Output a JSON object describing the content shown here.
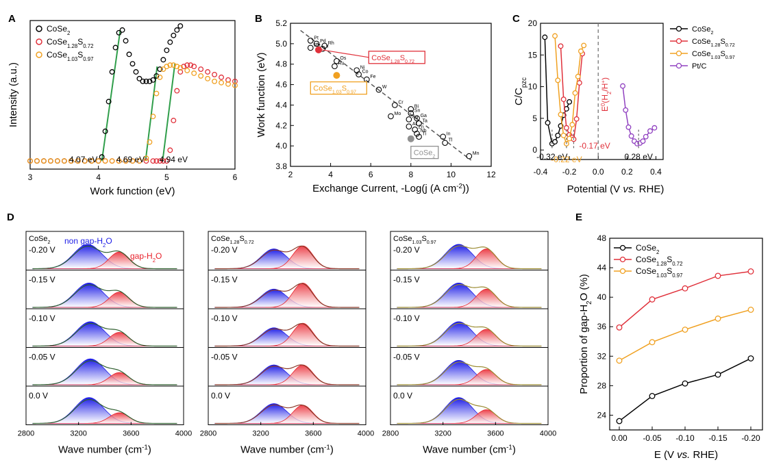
{
  "panel_labels": {
    "A": "A",
    "B": "B",
    "C": "C",
    "D": "D",
    "E": "E"
  },
  "colors": {
    "black": "#000000",
    "red": "#e0303a",
    "orange": "#f0a020",
    "purple": "#9040c0",
    "green": "#2f9e4a",
    "blue": "#1a1ae6",
    "gapred": "#e8202a",
    "grey": "#909090"
  },
  "chart_data": [
    {
      "id": "A",
      "type": "scatter",
      "xlabel": "Work function (eV)",
      "ylabel": "Intensity (a.u.)",
      "xlim": [
        3,
        6
      ],
      "ylim": [
        0,
        1
      ],
      "xticks": [
        "3",
        "4",
        "5",
        "6"
      ],
      "legend_position": "top-left",
      "series": [
        {
          "name": "CoSe2",
          "label_main": "CoSe",
          "label_sub": "2",
          "color": "#000000",
          "x": [
            3.0,
            3.1,
            3.2,
            3.3,
            3.4,
            3.5,
            3.6,
            3.7,
            3.8,
            3.9,
            4.0,
            4.05,
            4.1,
            4.15,
            4.2,
            4.25,
            4.3,
            4.35,
            4.4,
            4.45,
            4.5,
            4.55,
            4.6,
            4.65,
            4.7,
            4.75,
            4.8,
            4.85,
            4.9,
            4.95,
            5.0,
            5.05,
            5.1,
            5.15,
            5.2
          ],
          "y": [
            0,
            0,
            0,
            0,
            0,
            0,
            0,
            0,
            0,
            0,
            0,
            0.03,
            0.22,
            0.44,
            0.66,
            0.84,
            0.95,
            0.97,
            0.89,
            0.79,
            0.72,
            0.66,
            0.61,
            0.59,
            0.59,
            0.59,
            0.6,
            0.63,
            0.68,
            0.75,
            0.82,
            0.88,
            0.93,
            0.97,
            1.0
          ]
        },
        {
          "name": "CoSe1.28S0.72",
          "label_main": "CoSe",
          "label_sub1": "1.28",
          "label_mid": "S",
          "label_sub2": "0.72",
          "color": "#e0303a",
          "x": [
            3.0,
            3.1,
            3.2,
            3.3,
            3.4,
            3.5,
            3.6,
            3.7,
            3.8,
            3.9,
            4.0,
            4.1,
            4.2,
            4.3,
            4.4,
            4.5,
            4.6,
            4.7,
            4.8,
            4.85,
            4.9,
            4.95,
            5.0,
            5.05,
            5.1,
            5.15,
            5.2,
            5.25,
            5.3,
            5.35,
            5.4,
            5.5,
            5.6,
            5.7,
            5.8,
            5.9,
            6.0
          ],
          "y": [
            0,
            0,
            0,
            0,
            0,
            0,
            0,
            0,
            0,
            0,
            0,
            0,
            0,
            0,
            0,
            0,
            0,
            0,
            0,
            0,
            0,
            0,
            0.0,
            0.08,
            0.3,
            0.52,
            0.66,
            0.7,
            0.71,
            0.71,
            0.7,
            0.68,
            0.66,
            0.64,
            0.62,
            0.6,
            0.59
          ]
        },
        {
          "name": "CoSe1.03S0.97",
          "label_main": "CoSe",
          "label_sub1": "1.03",
          "label_mid": "S",
          "label_sub2": "0.97",
          "color": "#f0a020",
          "x": [
            3.0,
            3.1,
            3.2,
            3.3,
            3.4,
            3.5,
            3.6,
            3.7,
            3.8,
            3.9,
            4.0,
            4.1,
            4.2,
            4.3,
            4.4,
            4.5,
            4.6,
            4.7,
            4.75,
            4.8,
            4.85,
            4.9,
            4.95,
            5.0,
            5.05,
            5.1,
            5.15,
            5.2,
            5.3,
            5.4,
            5.5,
            5.6,
            5.7,
            5.8,
            5.9,
            6.0
          ],
          "y": [
            0,
            0,
            0,
            0,
            0,
            0,
            0,
            0,
            0,
            0,
            0,
            0,
            0,
            0,
            0,
            0,
            0,
            0.02,
            0.14,
            0.33,
            0.5,
            0.62,
            0.68,
            0.7,
            0.71,
            0.71,
            0.7,
            0.69,
            0.67,
            0.65,
            0.63,
            0.61,
            0.59,
            0.58,
            0.57,
            0.56
          ]
        }
      ],
      "fits": [
        {
          "x": [
            4.05,
            4.32
          ],
          "y": [
            0.0,
            0.97
          ]
        },
        {
          "x": [
            4.69,
            4.86
          ],
          "y": [
            0.0,
            0.7
          ]
        },
        {
          "x": [
            4.94,
            5.12
          ],
          "y": [
            0.0,
            0.72
          ]
        }
      ],
      "annotations": [
        {
          "text": "4.07 eV",
          "x": 3.78,
          "y": 0.06
        },
        {
          "text": "4.69 eV",
          "x": 4.47,
          "y": 0.06
        },
        {
          "text": "4.94 eV",
          "x": 5.1,
          "y": 0.06
        }
      ]
    },
    {
      "id": "B",
      "type": "scatter",
      "xlabel_main": "Exchange Current, -Log(j (A cm",
      "xlabel_sup": "-2",
      "xlabel_end": "))",
      "ylabel": "Work function (eV)",
      "xlim": [
        2,
        12
      ],
      "ylim": [
        3.8,
        5.2
      ],
      "xticks": [
        "2",
        "4",
        "6",
        "8",
        "10",
        "12"
      ],
      "yticks": [
        "3.8",
        "4.0",
        "4.2",
        "4.4",
        "4.6",
        "4.8",
        "5.0",
        "5.2"
      ],
      "metals": [
        {
          "label": "Pt",
          "x": 3.0,
          "y": 5.03
        },
        {
          "label": "Pd",
          "x": 3.3,
          "y": 5.0
        },
        {
          "label": "Rh",
          "x": 3.7,
          "y": 4.98
        },
        {
          "label": "Ir",
          "x": 3.6,
          "y": 4.95
        },
        {
          "label": "Re",
          "x": 3.0,
          "y": 4.96
        },
        {
          "label": "Os",
          "x": 4.3,
          "y": 4.83
        },
        {
          "label": "Ru",
          "x": 4.2,
          "y": 4.78
        },
        {
          "label": "Ni",
          "x": 5.3,
          "y": 4.74
        },
        {
          "label": "Co",
          "x": 5.4,
          "y": 4.7
        },
        {
          "label": "Fe",
          "x": 5.8,
          "y": 4.65
        },
        {
          "label": "W",
          "x": 6.4,
          "y": 4.55
        },
        {
          "label": "Sb",
          "x": 5.1,
          "y": 4.56
        },
        {
          "label": "Cr",
          "x": 7.2,
          "y": 4.4
        },
        {
          "label": "Bi",
          "x": 8.0,
          "y": 4.36
        },
        {
          "label": "Sn",
          "x": 8.0,
          "y": 4.32
        },
        {
          "label": "Mo",
          "x": 7.0,
          "y": 4.29
        },
        {
          "label": "Ga",
          "x": 8.3,
          "y": 4.27
        },
        {
          "label": "Ag",
          "x": 7.9,
          "y": 4.26
        },
        {
          "label": "Ta",
          "x": 8.4,
          "y": 4.22
        },
        {
          "label": "Al",
          "x": 7.9,
          "y": 4.19
        },
        {
          "label": "Zn",
          "x": 8.2,
          "y": 4.16
        },
        {
          "label": "Nb",
          "x": 8.3,
          "y": 4.12
        },
        {
          "label": "Ti",
          "x": 8.4,
          "y": 4.09
        },
        {
          "label": "In",
          "x": 9.6,
          "y": 4.09
        },
        {
          "label": "Tl",
          "x": 9.7,
          "y": 4.03
        },
        {
          "label": "Mn",
          "x": 10.9,
          "y": 3.9
        }
      ],
      "highlight": [
        {
          "label_main": "CoSe",
          "label_sub1": "1.28",
          "label_mid": "S",
          "label_sub2": "0.72",
          "x": 3.4,
          "y": 4.94,
          "color": "#e0303a",
          "box_x": 5.9,
          "box_y": 4.9
        },
        {
          "label_main": "CoSe",
          "label_sub1": "1.03",
          "label_mid": "S",
          "label_sub2": "0.97",
          "x": 4.3,
          "y": 4.69,
          "color": "#f0a020",
          "box_x": 3.0,
          "box_y": 4.6
        },
        {
          "label_main": "CoSe",
          "label_sub": "2",
          "x": 8.0,
          "y": 4.07,
          "color": "#909090",
          "box_x": 8.0,
          "box_y": 3.97
        }
      ],
      "trend": {
        "x": [
          2.5,
          11.0
        ],
        "y": [
          5.13,
          3.86
        ]
      }
    },
    {
      "id": "C",
      "type": "line",
      "xlabel_main": "Potential (V ",
      "xlabel_it": "vs.",
      "xlabel_end": " RHE)",
      "ylabel_main": "C/C",
      "ylabel_sub": "pzc",
      "xlim": [
        -0.4,
        0.45
      ],
      "ylim": [
        -1.5,
        20
      ],
      "xticks": [
        -0.4,
        -0.2,
        0.0,
        0.2,
        0.4
      ],
      "xtick_labels": [
        "-0.4",
        "-0.2",
        "0.0",
        "0.2",
        "0.4"
      ],
      "yticks": [
        0,
        5,
        10,
        15,
        20
      ],
      "ytick_labels": [
        "0",
        "5",
        "10",
        "15",
        "20"
      ],
      "legend_position": "top-right",
      "series": [
        {
          "name": "CoSe2",
          "label_main": "CoSe",
          "label_sub": "2",
          "color": "#000000",
          "x": [
            -0.37,
            -0.35,
            -0.32,
            -0.3,
            -0.28,
            -0.26,
            -0.24,
            -0.22,
            -0.2
          ],
          "y": [
            17.8,
            4.3,
            1.0,
            1.3,
            2.3,
            3.8,
            5.5,
            6.5,
            7.6
          ]
        },
        {
          "name": "CoSe1.28S0.72",
          "label_main": "CoSe",
          "label_sub1": "1.28",
          "label_mid": "S",
          "label_sub2": "0.72",
          "color": "#e0303a",
          "x": [
            -0.26,
            -0.24,
            -0.22,
            -0.2,
            -0.18,
            -0.17,
            -0.15,
            -0.13,
            -0.11
          ],
          "y": [
            16.4,
            8.0,
            3.5,
            2.4,
            2.0,
            1.7,
            4.9,
            10.6,
            15.2
          ]
        },
        {
          "name": "CoSe1.03S0.97",
          "label_main": "CoSe",
          "label_sub1": "1.03",
          "label_mid": "S",
          "label_sub2": "0.97",
          "color": "#f0a020",
          "x": [
            -0.3,
            -0.28,
            -0.26,
            -0.24,
            -0.22,
            -0.2,
            -0.18,
            -0.16,
            -0.14,
            -0.12,
            -0.1
          ],
          "y": [
            18.0,
            11.0,
            5.6,
            2.3,
            1.0,
            1.8,
            4.0,
            9.0,
            11.6,
            15.6,
            16.5
          ]
        },
        {
          "name": "Pt/C",
          "label_main": "Pt/C",
          "color": "#9040c0",
          "x": [
            0.17,
            0.19,
            0.21,
            0.23,
            0.25,
            0.27,
            0.29,
            0.31,
            0.33,
            0.36,
            0.39
          ],
          "y": [
            10.1,
            6.3,
            3.6,
            2.2,
            1.4,
            1.0,
            1.1,
            1.4,
            2.1,
            3.0,
            3.5
          ]
        }
      ],
      "vline": {
        "x": 0.0,
        "label_main": "E",
        "label_sup": "0",
        "label_mid": "(H",
        "label_sub": "2",
        "label_end": "/H",
        "label_sup2": "+",
        "label_close": ")"
      },
      "minima": [
        {
          "x": -0.32,
          "text": "-0.32 eV",
          "color": "#000000"
        },
        {
          "x": -0.22,
          "text": "-0.22 eV",
          "color": "#f0a020"
        },
        {
          "x": -0.17,
          "text": "-0.17 eV",
          "color": "#e0303a"
        },
        {
          "x": 0.28,
          "text": "0.28 eV",
          "color": "#000000"
        }
      ]
    },
    {
      "id": "D",
      "type": "area",
      "xlabel_main": "Wave number (cm",
      "xlabel_sup": "-1",
      "xlabel_end": ")",
      "xlim": [
        2800,
        4000
      ],
      "xticks": [
        "2800",
        "3200",
        "3600",
        "4000"
      ],
      "legend_blue_main": "non gap-H",
      "legend_blue_sub": "2",
      "legend_blue_end": "O",
      "legend_red_main": "gap-H",
      "legend_red_sub": "2",
      "legend_red_end": "O",
      "potentials": [
        "-0.20 V",
        "-0.15 V",
        "-0.10 V",
        "-0.05 V",
        "0.0 V"
      ],
      "columns": [
        {
          "label_main": "CoSe",
          "label_sub": "2",
          "outline": "#2e5e2e",
          "peaks": [
            {
              "bc": 3270,
              "bw": 200,
              "ba": 0.8,
              "rc": 3510,
              "rw": 140,
              "ra": 0.55
            },
            {
              "bc": 3280,
              "bw": 200,
              "ba": 0.8,
              "rc": 3510,
              "rw": 140,
              "ra": 0.5
            },
            {
              "bc": 3290,
              "bw": 200,
              "ba": 0.8,
              "rc": 3510,
              "rw": 140,
              "ra": 0.45
            },
            {
              "bc": 3290,
              "bw": 200,
              "ba": 0.85,
              "rc": 3510,
              "rw": 140,
              "ra": 0.4
            },
            {
              "bc": 3280,
              "bw": 200,
              "ba": 0.85,
              "rc": 3510,
              "rw": 140,
              "ra": 0.35
            }
          ]
        },
        {
          "label_main": "CoSe",
          "label_sub1": "1.28",
          "label_mid": "S",
          "label_sub2": "0.72",
          "outline": "#8a3a2a",
          "peaks": [
            {
              "bc": 3300,
              "bw": 180,
              "ba": 0.65,
              "rc": 3520,
              "rw": 140,
              "ra": 0.75
            },
            {
              "bc": 3300,
              "bw": 180,
              "ba": 0.6,
              "rc": 3520,
              "rw": 140,
              "ra": 0.8
            },
            {
              "bc": 3300,
              "bw": 180,
              "ba": 0.6,
              "rc": 3520,
              "rw": 140,
              "ra": 0.75
            },
            {
              "bc": 3300,
              "bw": 180,
              "ba": 0.65,
              "rc": 3520,
              "rw": 140,
              "ra": 0.65
            },
            {
              "bc": 3300,
              "bw": 180,
              "ba": 0.65,
              "rc": 3520,
              "rw": 140,
              "ra": 0.6
            }
          ]
        },
        {
          "label_main": "CoSe",
          "label_sub1": "1.03",
          "label_mid": "S",
          "label_sub2": "0.97",
          "outline": "#9a8a30",
          "peaks": [
            {
              "bc": 3320,
              "bw": 190,
              "ba": 0.8,
              "rc": 3530,
              "rw": 140,
              "ra": 0.65
            },
            {
              "bc": 3320,
              "bw": 190,
              "ba": 0.8,
              "rc": 3530,
              "rw": 140,
              "ra": 0.6
            },
            {
              "bc": 3320,
              "bw": 190,
              "ba": 0.8,
              "rc": 3530,
              "rw": 140,
              "ra": 0.55
            },
            {
              "bc": 3320,
              "bw": 190,
              "ba": 0.8,
              "rc": 3530,
              "rw": 140,
              "ra": 0.5
            },
            {
              "bc": 3320,
              "bw": 190,
              "ba": 0.85,
              "rc": 3530,
              "rw": 140,
              "ra": 0.45
            }
          ]
        }
      ]
    },
    {
      "id": "E",
      "type": "line",
      "xlabel_main": "E (V ",
      "xlabel_it": "vs.",
      "xlabel_end": " RHE)",
      "ylabel_main": "Proportion of gap-H",
      "ylabel_sub": "2",
      "ylabel_end": "O (%)",
      "categories": [
        "0.00",
        "-0.05",
        "-0.10",
        "-0.15",
        "-0.20"
      ],
      "ylim": [
        22,
        48
      ],
      "yticks": [
        "24",
        "28",
        "32",
        "36",
        "40",
        "44",
        "48"
      ],
      "legend_position": "top-left",
      "series": [
        {
          "name": "CoSe2",
          "label_main": "CoSe",
          "label_sub": "2",
          "color": "#000000",
          "values": [
            23.2,
            26.6,
            28.3,
            29.5,
            31.7
          ]
        },
        {
          "name": "CoSe1.28S0.72",
          "label_main": "CoSe",
          "label_sub1": "1.28",
          "label_mid": "S",
          "label_sub2": "0.72",
          "color": "#e0303a",
          "values": [
            35.9,
            39.7,
            41.2,
            42.9,
            43.5
          ]
        },
        {
          "name": "CoSe1.03S0.97",
          "label_main": "CoSe",
          "label_sub1": "1.03",
          "label_mid": "S",
          "label_sub2": "0.97",
          "color": "#f0a020",
          "values": [
            31.4,
            33.9,
            35.6,
            37.1,
            38.3
          ]
        }
      ]
    }
  ]
}
